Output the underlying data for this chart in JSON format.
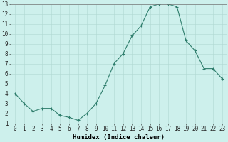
{
  "xlabel": "Humidex (Indice chaleur)",
  "x": [
    0,
    1,
    2,
    3,
    4,
    5,
    6,
    7,
    8,
    9,
    10,
    11,
    12,
    13,
    14,
    15,
    16,
    17,
    18,
    19,
    20,
    21,
    22,
    23
  ],
  "y": [
    4.0,
    3.0,
    2.2,
    2.5,
    2.5,
    1.8,
    1.6,
    1.3,
    2.0,
    3.0,
    4.8,
    7.0,
    8.0,
    9.8,
    10.8,
    12.7,
    13.0,
    13.0,
    12.7,
    9.3,
    8.3,
    6.5,
    6.5,
    5.5
  ],
  "line_color": "#2e7d6c",
  "bg_color": "#cdf0ec",
  "grid_color": "#b0d8d2",
  "ylim": [
    1,
    13
  ],
  "xlim": [
    -0.5,
    23.5
  ],
  "yticks": [
    1,
    2,
    3,
    4,
    5,
    6,
    7,
    8,
    9,
    10,
    11,
    12,
    13
  ],
  "xticks": [
    0,
    1,
    2,
    3,
    4,
    5,
    6,
    7,
    8,
    9,
    10,
    11,
    12,
    13,
    14,
    15,
    16,
    17,
    18,
    19,
    20,
    21,
    22,
    23
  ],
  "xlabel_fontsize": 6.5,
  "tick_fontsize": 5.5,
  "marker_size": 2.5,
  "linewidth": 0.8
}
